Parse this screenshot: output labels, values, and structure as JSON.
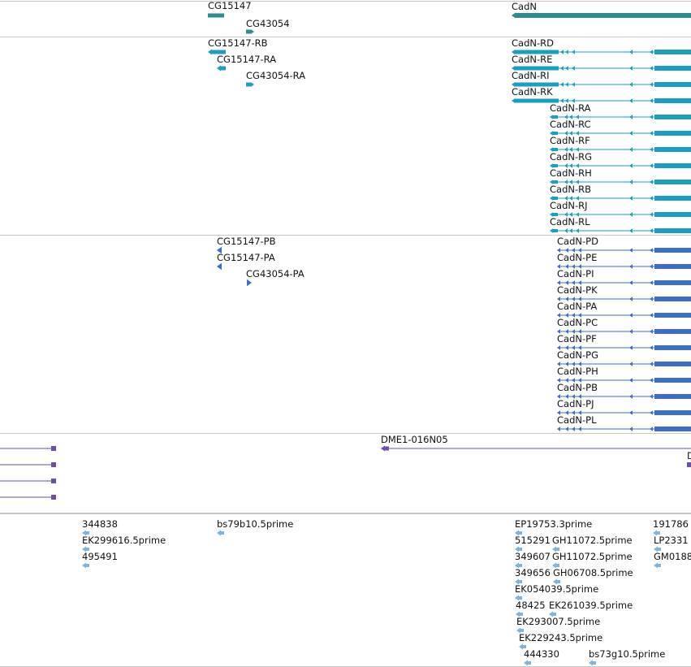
{
  "colors": {
    "gene": "#2e8b8e",
    "transcript": "#1a9fc0",
    "protein": "#3b6ccf",
    "clone": "#6b4fa8",
    "est": "#7fb4dc",
    "separator": "#c8c8c8"
  },
  "genes": [
    {
      "label": "CG15147",
      "kind": "gene"
    },
    {
      "label": "CG43054",
      "kind": "gene"
    },
    {
      "label": "CadN",
      "kind": "gene"
    }
  ],
  "transcripts": [
    {
      "label": "CG15147-RB"
    },
    {
      "label": "CG15147-RA"
    },
    {
      "label": "CG43054-RA"
    },
    {
      "label": "CadN-RD"
    },
    {
      "label": "CadN-RE"
    },
    {
      "label": "CadN-RI"
    },
    {
      "label": "CadN-RK"
    },
    {
      "label": "CadN-RA"
    },
    {
      "label": "CadN-RC"
    },
    {
      "label": "CadN-RF"
    },
    {
      "label": "CadN-RG"
    },
    {
      "label": "CadN-RH"
    },
    {
      "label": "CadN-RB"
    },
    {
      "label": "CadN-RJ"
    },
    {
      "label": "CadN-RL"
    }
  ],
  "proteins": [
    {
      "label": "CG15147-PB"
    },
    {
      "label": "CG15147-PA"
    },
    {
      "label": "CG43054-PA"
    },
    {
      "label": "CadN-PD"
    },
    {
      "label": "CadN-PE"
    },
    {
      "label": "CadN-PI"
    },
    {
      "label": "CadN-PK"
    },
    {
      "label": "CadN-PA"
    },
    {
      "label": "CadN-PC"
    },
    {
      "label": "CadN-PF"
    },
    {
      "label": "CadN-PG"
    },
    {
      "label": "CadN-PH"
    },
    {
      "label": "CadN-PB"
    },
    {
      "label": "CadN-PJ"
    },
    {
      "label": "CadN-PL"
    }
  ],
  "clones": [
    {
      "label": "DME1-016N05"
    },
    {
      "label": "D"
    }
  ],
  "ests": [
    {
      "label": "344838"
    },
    {
      "label": "EK299616.5prime"
    },
    {
      "label": "495491"
    },
    {
      "label": "bs79b10.5prime"
    },
    {
      "label": "EP19753.3prime"
    },
    {
      "label": "515291"
    },
    {
      "label": "GH11072.5prime"
    },
    {
      "label": "349607"
    },
    {
      "label": "GH11072.5prime"
    },
    {
      "label": "349656"
    },
    {
      "label": "GH06708.5prime"
    },
    {
      "label": "EK054039.5prime"
    },
    {
      "label": "48425"
    },
    {
      "label": "EK261039.5prime"
    },
    {
      "label": "EK293007.5prime"
    },
    {
      "label": "EK229243.5prime"
    },
    {
      "label": "444330"
    },
    {
      "label": "bs73g10.5prime"
    },
    {
      "label": "191786"
    },
    {
      "label": "LP2331"
    },
    {
      "label": "GM0188"
    }
  ]
}
